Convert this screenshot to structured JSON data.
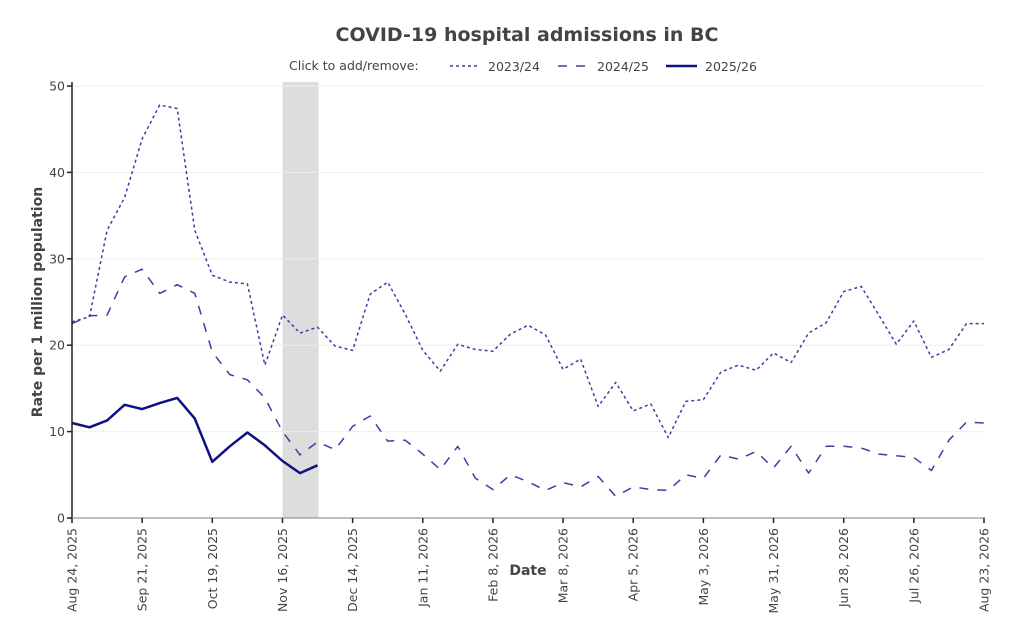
{
  "chart_data": {
    "type": "line",
    "title": "COVID-19 hospital admissions in BC",
    "xlabel": "Date",
    "ylabel": "Rate per 1 million population",
    "ylim": [
      0,
      50
    ],
    "yticks": [
      0,
      10,
      20,
      30,
      40,
      50
    ],
    "grid": true,
    "legend": {
      "caption": "Click to add/remove:",
      "placement": "top-center"
    },
    "x_start": "Aug 24, 2025",
    "x_interval": "weekly",
    "x_count": 53,
    "xtick_labels": [
      "Aug 24, 2025",
      "Sep 21, 2025",
      "Oct 19, 2025",
      "Nov 16, 2025",
      "Dec 14, 2025",
      "Jan 11, 2026",
      "Feb 8, 2026",
      "Mar 8, 2026",
      "Apr 5, 2026",
      "May 3, 2026",
      "May 31, 2026",
      "Jun 28, 2026",
      "Jul 26, 2026",
      "Aug 23, 2026"
    ],
    "xtick_every_n_weeks": 4,
    "highlight_band": {
      "from_week": 12,
      "to_week": 14,
      "color": "#dddddd"
    },
    "series": [
      {
        "name": "2023/24",
        "style": "dotted",
        "color": "#3b3fa3",
        "values": [
          22.7,
          23.3,
          33.3,
          37.1,
          43.9,
          47.8,
          47.4,
          33.3,
          28.1,
          27.3,
          27.1,
          17.7,
          23.5,
          21.4,
          22.1,
          19.9,
          19.4,
          25.9,
          27.3,
          23.6,
          19.4,
          17.0,
          20.1,
          19.5,
          19.3,
          21.3,
          22.3,
          21.2,
          17.2,
          18.4,
          12.9,
          15.7,
          12.4,
          13.2,
          9.3,
          13.5,
          13.7,
          16.9,
          17.7,
          17.1,
          19.1,
          18.0,
          21.4,
          22.6,
          26.2,
          26.8,
          23.5,
          20.1,
          22.8,
          18.6,
          19.5,
          22.5,
          22.5
        ]
      },
      {
        "name": "2024/25",
        "style": "dashed",
        "color": "#3b3fa3",
        "values": [
          22.5,
          23.4,
          23.5,
          27.9,
          28.8,
          26.0,
          27.0,
          26.0,
          19.2,
          16.6,
          16.0,
          13.9,
          10.0,
          7.3,
          8.8,
          7.9,
          10.6,
          11.8,
          8.9,
          9.0,
          7.4,
          5.6,
          8.3,
          4.6,
          3.3,
          5.0,
          4.2,
          3.2,
          4.1,
          3.6,
          4.8,
          2.5,
          3.6,
          3.3,
          3.2,
          5.0,
          4.6,
          7.3,
          6.8,
          7.7,
          5.8,
          8.3,
          5.2,
          8.3,
          8.3,
          8.1,
          7.4,
          7.2,
          7.0,
          5.5,
          9.0,
          11.1,
          11.0
        ]
      },
      {
        "name": "2025/26",
        "style": "solid",
        "color": "#0d1280",
        "values": [
          11.0,
          10.5,
          11.3,
          13.1,
          12.6,
          13.3,
          13.9,
          11.5,
          6.5,
          8.3,
          9.9,
          8.4,
          6.6,
          5.2,
          6.1
        ]
      }
    ]
  }
}
